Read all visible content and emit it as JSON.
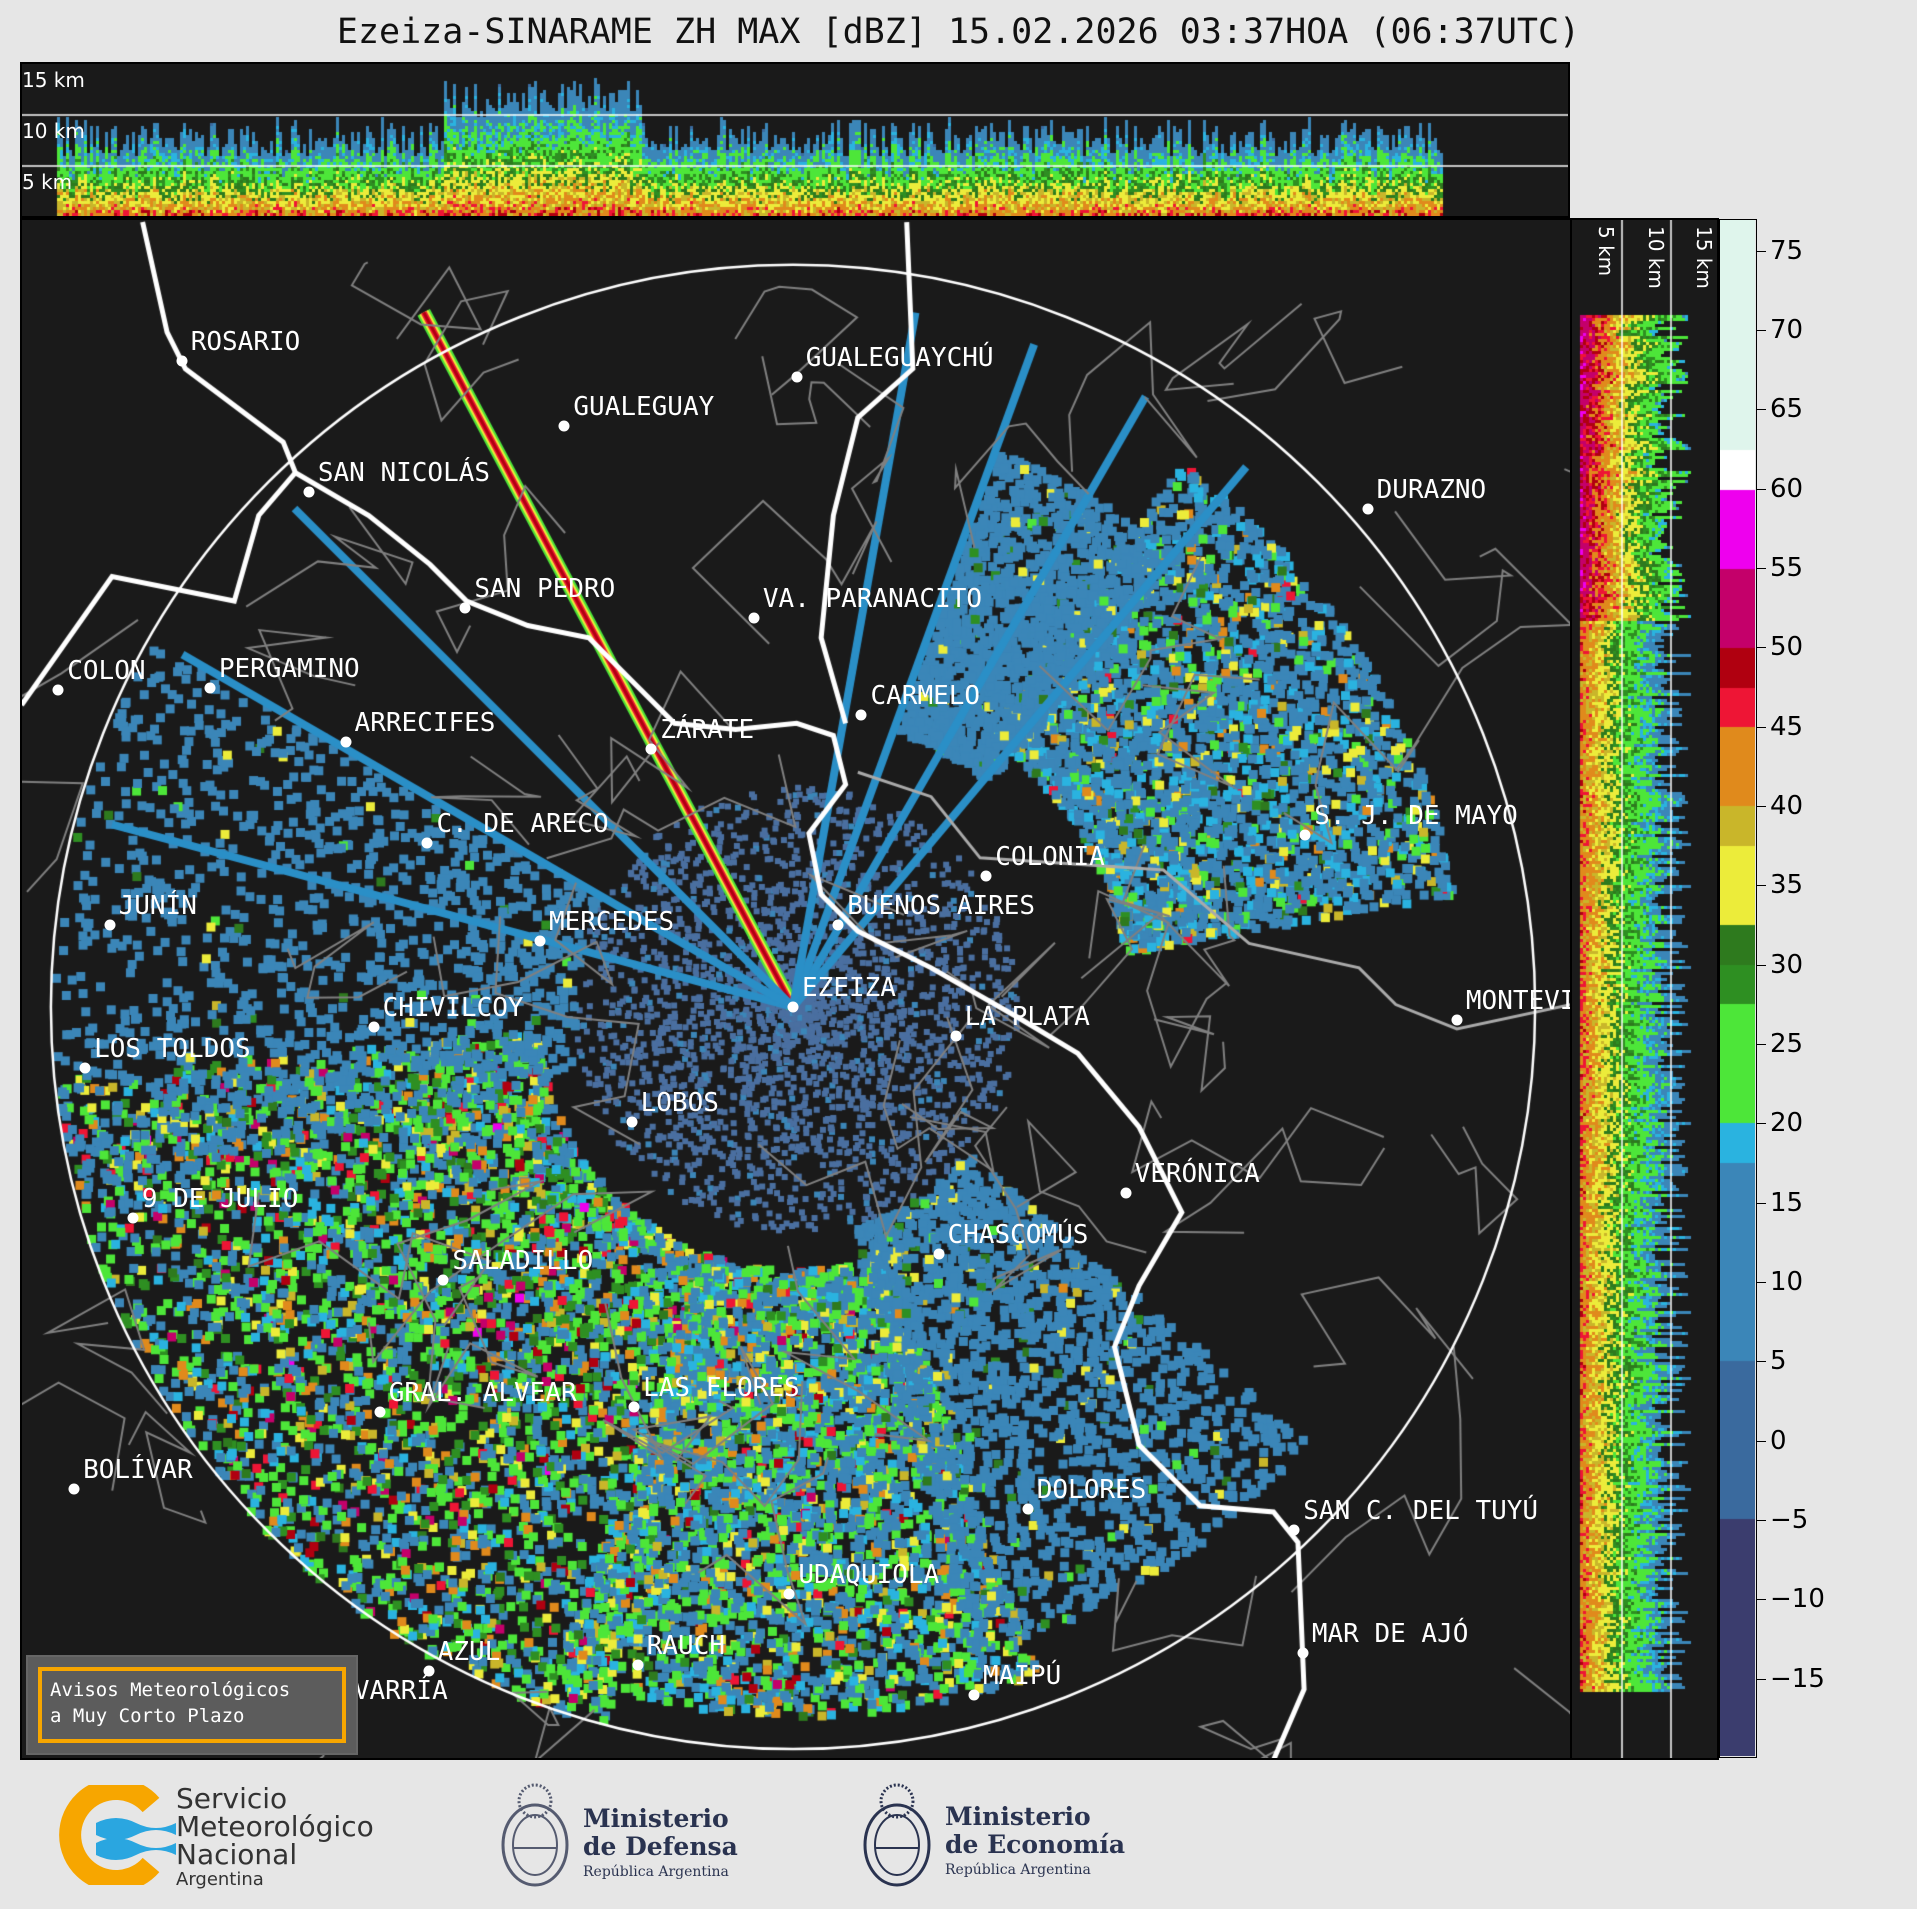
{
  "title": "Ezeiza-SINARAME ZH MAX [dBZ] 15.02.2026 03:37HOA (06:37UTC)",
  "top_panel": {
    "height_labels": [
      "15 km",
      "10 km",
      "5 km"
    ]
  },
  "right_panel": {
    "height_labels": [
      "5 km",
      "10 km",
      "15 km"
    ]
  },
  "colorbar": {
    "unit": "dBZ",
    "range": [
      -20,
      77
    ],
    "ticks": [
      "75",
      "70",
      "65",
      "60",
      "55",
      "50",
      "45",
      "40",
      "35",
      "30",
      "25",
      "20",
      "15",
      "10",
      "5",
      "0",
      "−5",
      "−10",
      "−15"
    ],
    "tick_values": [
      75,
      70,
      65,
      60,
      55,
      50,
      45,
      40,
      35,
      30,
      25,
      20,
      15,
      10,
      5,
      0,
      -5,
      -10,
      -15
    ]
  },
  "map": {
    "radar_site": "EZEIZA",
    "cities": [
      "ROSARIO",
      "GUALEGUAYCHÚ",
      "GUALEGUAY",
      "SAN NICOLÁS",
      "DURAZNO",
      "SAN PEDRO",
      "VA. PARANACITO",
      "COLON",
      "PERGAMINO",
      "CARMELO",
      "ARRECIFES",
      "ZÁRATE",
      "C. DE ARECO",
      "S. J. DE MAYO",
      "COLONIA",
      "JUNÍN",
      "BUENOS AIRES",
      "MERCEDES",
      "MONTEVIDEO",
      "EZEIZA",
      "CHIVILCOY",
      "LA PLATA",
      "LOS TOLDOS",
      "LOBOS",
      "VERÓNICA",
      "9 DE JULIO",
      "CHASCOMÚS",
      "SALADILLO",
      "GRAL. ALVEAR",
      "LAS FLORES",
      "BOLÍVAR",
      "DOLORES",
      "SAN C. DEL TUYÚ",
      "UDAQUIOLA",
      "MAR DE AJÓ",
      "AZUL",
      "RAUCH",
      "OLAVARRÍA",
      "MAIPÚ"
    ]
  },
  "notice": {
    "line1": "Avisos Meteorológicos",
    "line2": "a Muy Corto Plazo"
  },
  "logos": {
    "smn": [
      "Servicio",
      "Meteorológico",
      "Nacional",
      "Argentina"
    ],
    "defensa": [
      "Ministerio",
      "de Defensa",
      "República Argentina"
    ],
    "economia": [
      "Ministerio",
      "de Economía",
      "República Argentina"
    ]
  },
  "colors": {
    "background": "#1a1a1a",
    "figure": "#e6e6e6",
    "notice_border": "#f7a600",
    "smn_orange": "#f7a600",
    "smn_blue": "#2aa6e0"
  }
}
